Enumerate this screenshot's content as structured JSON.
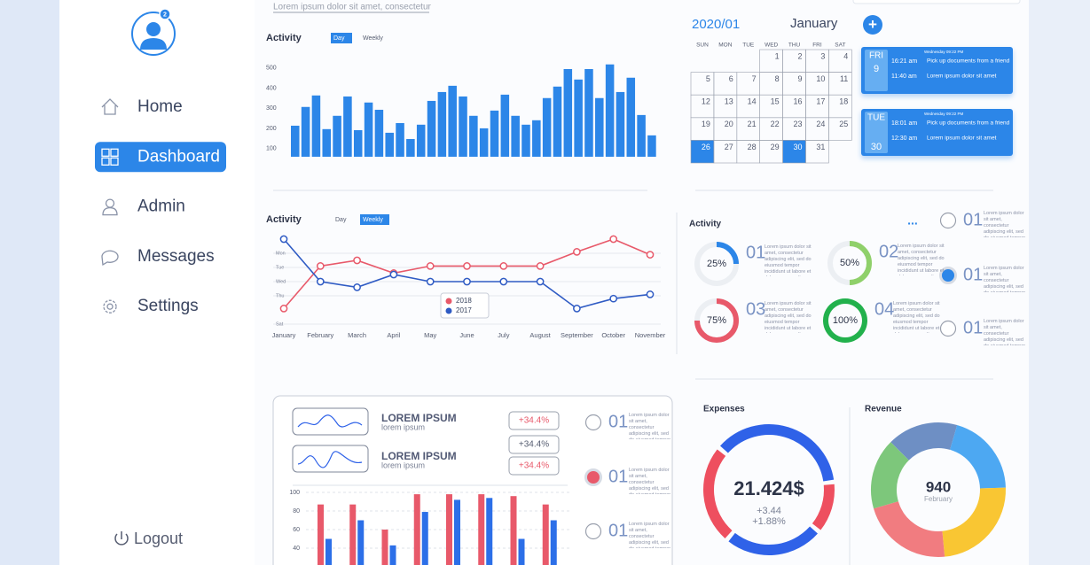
{
  "sidebar": {
    "badge": "2",
    "nav": [
      "Home",
      "Dashboard",
      "Admin",
      "Messages",
      "Settings"
    ],
    "active": 1,
    "logout": "Logout"
  },
  "top_caption": "Lorem ipsum dolor sit amet, consectetur",
  "calendar": {
    "year_month": "2020/01",
    "month": "January",
    "add_button": "+",
    "weekdays": [
      "SUN",
      "MON",
      "TUE",
      "WED",
      "THU",
      "FRI",
      "SAT"
    ],
    "weeks": [
      [
        null,
        null,
        null,
        1,
        2,
        3,
        4
      ],
      [
        5,
        6,
        7,
        8,
        9,
        10,
        11
      ],
      [
        12,
        13,
        14,
        15,
        16,
        17,
        18
      ],
      [
        19,
        20,
        21,
        22,
        23,
        24,
        25
      ],
      [
        26,
        27,
        28,
        29,
        30,
        31,
        null
      ]
    ],
    "highlighted": [
      26,
      30
    ]
  },
  "events": [
    {
      "day": "FRI",
      "date": "9",
      "stamp": "Wednesday 09:22 PM",
      "items": [
        {
          "time": "16:21 am",
          "text": "Pick up documents from a friend"
        },
        {
          "time": "11:40 am",
          "text": "Lorem ipsum dolor sit amet"
        }
      ]
    },
    {
      "day": "TUE",
      "date": "30",
      "stamp": "Wednesday 09:22 PM",
      "items": [
        {
          "time": "18:01 am",
          "text": "Pick up documents from a friend"
        },
        {
          "time": "12:30 am",
          "text": "Lorem ipsum dolor sit amet"
        }
      ]
    }
  ],
  "tasks": {
    "selected": 1,
    "select_color": "#2c86e8",
    "options": [
      {
        "label": "01",
        "text": "Lorem ipsum dolor sit amet, consectetur adipiscing elit, sed do eiusmod tempor incididunt ut labore et dolore magna aliqua"
      },
      {
        "label": "01",
        "text": "Lorem ipsum dolor sit amet, consectetur adipiscing elit, sed do eiusmod tempor incididunt ut labore et dolore magna aliqua"
      },
      {
        "label": "01",
        "text": "Lorem ipsum dolor sit amet, consectetur adipiscing elit, sed do eiusmod tempor incididunt ut labore et dolore magna aliqua"
      }
    ]
  },
  "bottom_panel": {
    "items": [
      {
        "title": "LOREM IPSUM",
        "subtitle": "lorem ipsum"
      },
      {
        "title": "LOREM IPSUM",
        "subtitle": "lorem ipsum"
      }
    ],
    "changes": [
      "+34.4%",
      "+34.4%",
      "+34.4%"
    ],
    "change_colors": [
      "#e8596a",
      "#555c70",
      "#e8596a"
    ],
    "selected": 1,
    "select_color": "#e8596a",
    "options": [
      {
        "label": "01",
        "text": "Lorem ipsum dolor sit amet, consectetur adipiscing elit, sed do eiusmod tempor incididunt ut labore et dolore magna aliqua"
      },
      {
        "label": "01",
        "text": "Lorem ipsum dolor sit amet, consectetur adipiscing elit, sed do eiusmod tempor incididunt ut labore et dolore magna aliqua"
      },
      {
        "label": "01",
        "text": "Lorem ipsum dolor sit amet, consectetur adipiscing elit, sed do eiusmod tempor incididunt ut labore et dolore magna aliqua"
      }
    ]
  },
  "chart_data": [
    {
      "type": "bar",
      "title": "Activity",
      "tabs": [
        "Day",
        "Weekly"
      ],
      "active_tab": 0,
      "color": "#2c86e8",
      "values": [
        214,
        307,
        364,
        197,
        263,
        359,
        192,
        329,
        293,
        179,
        227,
        148,
        219,
        337,
        381,
        412,
        359,
        263,
        201,
        289,
        368,
        263,
        219,
        241,
        351,
        408,
        495,
        443,
        495,
        351,
        518,
        381,
        452,
        267,
        166
      ],
      "ylim": [
        60,
        530
      ],
      "yticks": [
        100,
        200,
        300,
        400,
        500
      ]
    },
    {
      "type": "line",
      "title": "Activity",
      "tabs": [
        "Day",
        "Weekly"
      ],
      "active_tab": 1,
      "categories": [
        "January",
        "February",
        "March",
        "April",
        "May",
        "June",
        "July",
        "August",
        "September",
        "October",
        "November"
      ],
      "series": [
        {
          "name": "2018",
          "color": "#e8596a",
          "values": [
            4.9,
            1.9,
            1.5,
            2.4,
            1.9,
            1.9,
            1.9,
            1.9,
            0.9,
            0,
            1.1
          ]
        },
        {
          "name": "2017",
          "color": "#2f5bc4",
          "values": [
            0,
            3,
            3.4,
            2.5,
            3,
            3,
            3,
            3,
            4.9,
            4.2,
            3.9
          ]
        }
      ],
      "ylim": [
        6,
        0
      ],
      "yticks": [
        {
          "value": 1,
          "label": "Mon"
        },
        {
          "value": 2,
          "label": "Tue"
        },
        {
          "value": 3,
          "label": "Wed"
        },
        {
          "value": 4,
          "label": "Thu"
        },
        {
          "value": 6,
          "label": "Sat"
        }
      ],
      "grid": true
    },
    {
      "type": "progress",
      "title": "Activity",
      "menu": "...",
      "categories": [
        "01",
        "02",
        "03",
        "04"
      ],
      "values": [
        25,
        50,
        75,
        100
      ],
      "value_labels": [
        "25%",
        "50%",
        "75%",
        "100%"
      ],
      "colors": [
        "#2c86e8",
        "#8fd06a",
        "#e8596a",
        "#22b14c"
      ],
      "texts": [
        "Lorem ipsum dolor sit amet, consectetur adipiscing elit, sed do eiusmod tempor incididunt ut labore et dolore magna aliqua",
        "Lorem ipsum dolor sit amet, consectetur adipiscing elit, sed do eiusmod tempor incididunt ut labore et dolore magna aliqua",
        "Lorem ipsum dolor sit amet, consectetur adipiscing elit, sed do eiusmod tempor incididunt ut labore et dolore magna aliqua",
        "Lorem ipsum dolor sit amet, consectetur adipiscing elit, sed do eiusmod tempor incididunt ut labore et dolore magna aliqua"
      ]
    },
    {
      "type": "grouped_bar",
      "series": [
        {
          "color": "#e8596a",
          "values": [
            87,
            87,
            60,
            98,
            98,
            98,
            96,
            87
          ]
        },
        {
          "color": "#2c6fe8",
          "values": [
            50,
            70,
            43,
            79,
            92,
            94,
            50,
            70
          ]
        }
      ],
      "ylim": [
        0,
        100
      ],
      "yticks": [
        40,
        60,
        80,
        100
      ],
      "grid": true
    },
    {
      "type": "donut",
      "title": "Expenses",
      "center_value": "21.424$",
      "notes": [
        "+3.44",
        "+1.88%"
      ],
      "values": [
        37,
        13,
        25,
        25
      ],
      "colors": [
        "#2f62e8",
        "#ee4f5f",
        "#2f62e8",
        "#ee4f5f"
      ]
    },
    {
      "type": "donut",
      "title": "Revenue",
      "center_value": "940",
      "center_label": "February",
      "values": [
        17,
        20,
        24,
        22,
        17
      ],
      "colors": [
        "#6e8fc4",
        "#4da8f2",
        "#f9c633",
        "#f17c80",
        "#7dc77b"
      ]
    }
  ]
}
